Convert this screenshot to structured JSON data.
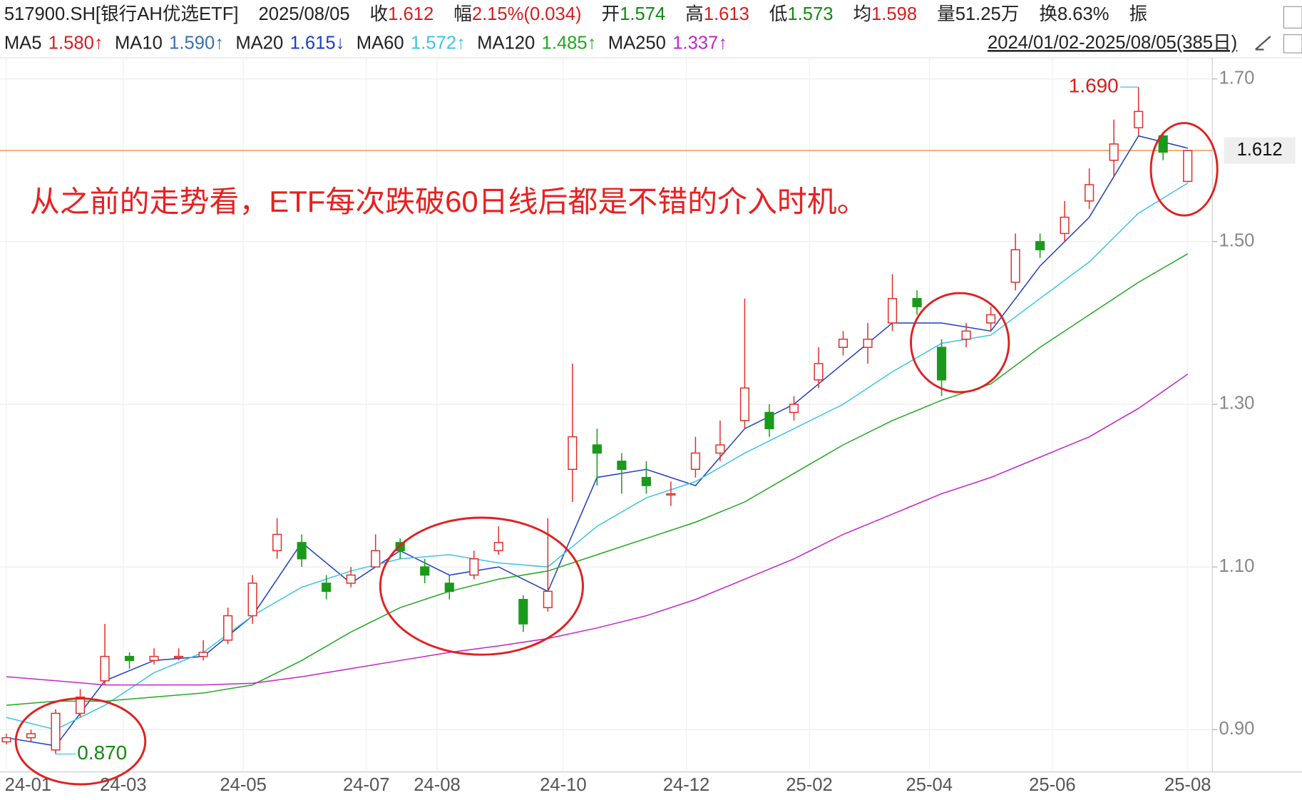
{
  "header": {
    "items": [
      {
        "label": "517900.SH[银行AH优选ETF]"
      },
      {
        "label": "2025/08/05"
      },
      {
        "label": "收",
        "value": "1.612",
        "color": "#d41e1e"
      },
      {
        "label": "幅",
        "value": "2.15%(0.034)",
        "color": "#d41e1e"
      },
      {
        "label": "开",
        "value": "1.574",
        "color": "#118a11"
      },
      {
        "label": "高",
        "value": "1.613",
        "color": "#d41e1e"
      },
      {
        "label": "低",
        "value": "1.573",
        "color": "#118a11"
      },
      {
        "label": "均",
        "value": "1.598",
        "color": "#d41e1e"
      },
      {
        "label": "量",
        "value": "51.25万",
        "color": "#222222"
      },
      {
        "label": "换",
        "value": "8.63%",
        "color": "#222222"
      },
      {
        "label": "振"
      }
    ],
    "range": "2024/01/02-2025/08/05(385日)"
  },
  "chart_data": {
    "type": "candlestick",
    "annotation_text": "从之前的走势看，ETF每次跌破60日线后都是不错的介入时机。",
    "up_color": "#e0302a",
    "down_color": "#1a9a1a",
    "xlim": [
      -1,
      392
    ],
    "xticks": [
      {
        "value": 0,
        "label": "24-01"
      },
      {
        "value": 38,
        "label": "24-03"
      },
      {
        "value": 77,
        "label": "24-05"
      },
      {
        "value": 117,
        "label": "24-07"
      },
      {
        "value": 140,
        "label": "24-08"
      },
      {
        "value": 181,
        "label": "24-10"
      },
      {
        "value": 221,
        "label": "24-12"
      },
      {
        "value": 261,
        "label": "25-02"
      },
      {
        "value": 300,
        "label": "25-04"
      },
      {
        "value": 340,
        "label": "25-06"
      },
      {
        "value": 384,
        "label": "25-08"
      }
    ],
    "ylim": [
      0.85,
      1.726
    ],
    "yticks": [
      {
        "value": 0.9,
        "label": "0.90"
      },
      {
        "value": 1.1,
        "label": "1.10"
      },
      {
        "value": 1.3,
        "label": "1.30"
      },
      {
        "value": 1.5,
        "label": "1.50"
      },
      {
        "value": 1.7,
        "label": "1.70"
      }
    ],
    "grid": true,
    "x": [
      0,
      8,
      16,
      24,
      32,
      40,
      48,
      56,
      64,
      72,
      80,
      88,
      96,
      104,
      112,
      120,
      128,
      136,
      144,
      152,
      160,
      168,
      176,
      184,
      192,
      200,
      208,
      216,
      224,
      232,
      240,
      248,
      256,
      264,
      272,
      280,
      288,
      296,
      304,
      312,
      320,
      328,
      336,
      344,
      352,
      360,
      368,
      376,
      384
    ],
    "open": [
      0.885,
      0.89,
      0.875,
      0.92,
      0.96,
      0.99,
      0.985,
      0.99,
      0.99,
      1.01,
      1.04,
      1.12,
      1.13,
      1.08,
      1.08,
      1.1,
      1.13,
      1.1,
      1.08,
      1.09,
      1.12,
      1.06,
      1.05,
      1.22,
      1.25,
      1.23,
      1.21,
      1.19,
      1.22,
      1.24,
      1.28,
      1.29,
      1.29,
      1.33,
      1.37,
      1.37,
      1.4,
      1.43,
      1.37,
      1.38,
      1.4,
      1.45,
      1.5,
      1.51,
      1.55,
      1.6,
      1.64,
      1.63,
      1.574
    ],
    "high": [
      0.895,
      0.9,
      0.925,
      0.95,
      1.03,
      0.995,
      1.0,
      1.0,
      1.01,
      1.05,
      1.09,
      1.16,
      1.14,
      1.09,
      1.1,
      1.14,
      1.135,
      1.11,
      1.09,
      1.12,
      1.15,
      1.065,
      1.16,
      1.35,
      1.27,
      1.24,
      1.23,
      1.205,
      1.26,
      1.28,
      1.43,
      1.3,
      1.31,
      1.37,
      1.39,
      1.4,
      1.46,
      1.44,
      1.38,
      1.4,
      1.42,
      1.51,
      1.51,
      1.55,
      1.59,
      1.65,
      1.69,
      1.635,
      1.613
    ],
    "low": [
      0.882,
      0.885,
      0.87,
      0.915,
      0.955,
      0.975,
      0.98,
      0.985,
      0.985,
      1.005,
      1.03,
      1.11,
      1.1,
      1.06,
      1.075,
      1.1,
      1.11,
      1.08,
      1.06,
      1.085,
      1.115,
      1.02,
      1.045,
      1.18,
      1.2,
      1.19,
      1.19,
      1.175,
      1.21,
      1.23,
      1.27,
      1.26,
      1.28,
      1.32,
      1.36,
      1.35,
      1.39,
      1.41,
      1.31,
      1.37,
      1.39,
      1.44,
      1.48,
      1.5,
      1.54,
      1.58,
      1.63,
      1.6,
      1.573
    ],
    "close": [
      0.89,
      0.895,
      0.92,
      0.94,
      0.99,
      0.985,
      0.99,
      0.99,
      0.995,
      1.04,
      1.08,
      1.14,
      1.11,
      1.07,
      1.09,
      1.12,
      1.12,
      1.09,
      1.07,
      1.11,
      1.13,
      1.03,
      1.07,
      1.26,
      1.24,
      1.22,
      1.2,
      1.19,
      1.24,
      1.25,
      1.32,
      1.27,
      1.3,
      1.35,
      1.38,
      1.38,
      1.43,
      1.42,
      1.33,
      1.39,
      1.41,
      1.49,
      1.49,
      1.53,
      1.57,
      1.62,
      1.66,
      1.61,
      1.612
    ],
    "series": [
      {
        "name": "MA5",
        "last": "1.580↑",
        "color": "#d41e1e"
      },
      {
        "name": "MA10",
        "last": "1.590↑",
        "color": "#3a6fb0"
      },
      {
        "name": "MA20",
        "last": "1.615↓",
        "color": "#1d3fc4",
        "x": [
          0,
          16,
          32,
          48,
          64,
          80,
          96,
          112,
          128,
          144,
          160,
          176,
          192,
          208,
          224,
          240,
          256,
          272,
          288,
          304,
          320,
          336,
          352,
          368,
          384
        ],
        "values": [
          0.89,
          0.88,
          0.96,
          0.985,
          0.99,
          1.04,
          1.13,
          1.08,
          1.12,
          1.09,
          1.1,
          1.07,
          1.21,
          1.22,
          1.2,
          1.27,
          1.3,
          1.35,
          1.4,
          1.4,
          1.39,
          1.47,
          1.53,
          1.63,
          1.615
        ]
      },
      {
        "name": "MA60",
        "last": "1.572↑",
        "color": "#3cc4e4",
        "x": [
          0,
          16,
          32,
          48,
          64,
          80,
          96,
          112,
          128,
          144,
          160,
          176,
          192,
          208,
          224,
          240,
          256,
          272,
          288,
          304,
          320,
          336,
          352,
          368,
          384
        ],
        "values": [
          0.915,
          0.9,
          0.93,
          0.97,
          0.995,
          1.04,
          1.075,
          1.095,
          1.11,
          1.115,
          1.105,
          1.1,
          1.15,
          1.185,
          1.205,
          1.24,
          1.27,
          1.3,
          1.34,
          1.375,
          1.385,
          1.43,
          1.475,
          1.535,
          1.572
        ]
      },
      {
        "name": "MA120",
        "last": "1.485↑",
        "color": "#22a822",
        "x": [
          0,
          16,
          32,
          48,
          64,
          80,
          96,
          112,
          128,
          144,
          160,
          176,
          192,
          208,
          224,
          240,
          256,
          272,
          288,
          304,
          320,
          336,
          352,
          368,
          384
        ],
        "values": [
          0.93,
          0.935,
          0.935,
          0.94,
          0.945,
          0.955,
          0.985,
          1.02,
          1.05,
          1.07,
          1.085,
          1.095,
          1.115,
          1.135,
          1.155,
          1.18,
          1.215,
          1.25,
          1.28,
          1.305,
          1.325,
          1.37,
          1.41,
          1.45,
          1.485
        ]
      },
      {
        "name": "MA250",
        "last": "1.337↑",
        "color": "#c424c8",
        "x": [
          0,
          16,
          32,
          48,
          64,
          80,
          96,
          112,
          128,
          144,
          160,
          176,
          192,
          208,
          224,
          240,
          256,
          272,
          288,
          304,
          320,
          336,
          352,
          368,
          384
        ],
        "values": [
          0.965,
          0.96,
          0.955,
          0.955,
          0.955,
          0.957,
          0.965,
          0.975,
          0.985,
          0.995,
          1.003,
          1.012,
          1.025,
          1.04,
          1.06,
          1.085,
          1.11,
          1.14,
          1.165,
          1.19,
          1.21,
          1.235,
          1.26,
          1.295,
          1.337
        ]
      }
    ],
    "marks": [
      {
        "label": "1.690",
        "value": 1.69,
        "x": 368,
        "color": "#d41e1e"
      },
      {
        "label": "0.870",
        "value": 0.87,
        "x": 16,
        "color": "#118a11"
      }
    ],
    "last_price": {
      "label": "1.612",
      "value": 1.612,
      "color": "#f0903c"
    }
  }
}
